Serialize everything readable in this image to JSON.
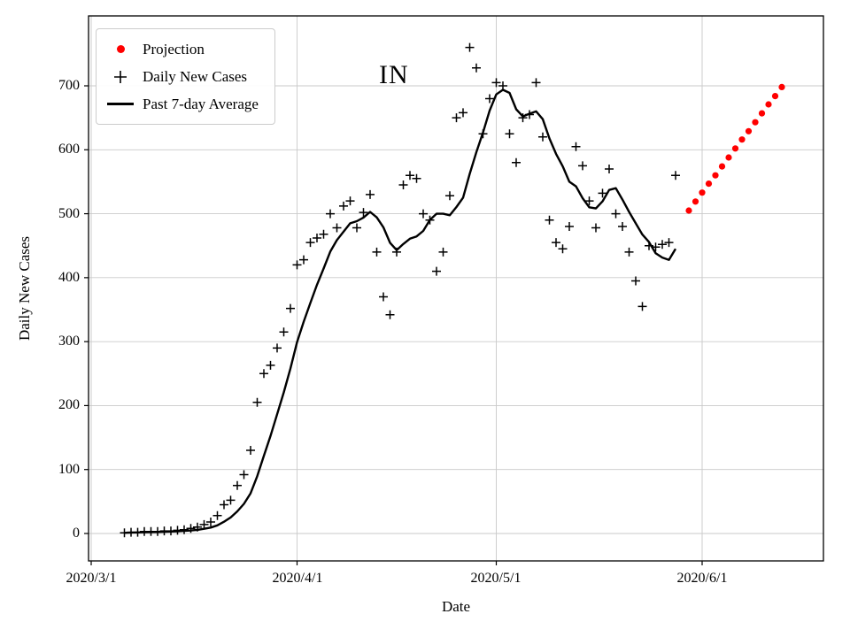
{
  "title": "IN",
  "legend": {
    "items": [
      {
        "label": "Projection",
        "marker": "dot",
        "color": "#ff0000"
      },
      {
        "label": "Daily New Cases",
        "marker": "plus",
        "color": "#000000"
      },
      {
        "label": "Past 7-day Average",
        "marker": "line",
        "color": "#000000"
      }
    ]
  },
  "chart_data": {
    "type": "scatter",
    "title": "IN",
    "xlabel": "Date",
    "ylabel": "Daily New Cases",
    "grid": true,
    "legend_position": "upper left",
    "x_tick_labels": [
      "2020/3/1",
      "2020/4/1",
      "2020/5/1",
      "2020/6/1"
    ],
    "y_tick_labels": [
      "0",
      "100",
      "200",
      "300",
      "400",
      "500",
      "600",
      "700"
    ],
    "ylim": [
      -43,
      809
    ],
    "xlim": [
      "2020/2/29",
      "2020/6/19"
    ],
    "series": [
      {
        "name": "Daily New Cases",
        "type": "scatter",
        "marker": "plus",
        "color": "#000000",
        "dates": [
          "2020/3/6",
          "2020/3/7",
          "2020/3/8",
          "2020/3/9",
          "2020/3/10",
          "2020/3/11",
          "2020/3/12",
          "2020/3/13",
          "2020/3/14",
          "2020/3/15",
          "2020/3/16",
          "2020/3/17",
          "2020/3/18",
          "2020/3/19",
          "2020/3/20",
          "2020/3/21",
          "2020/3/22",
          "2020/3/23",
          "2020/3/24",
          "2020/3/25",
          "2020/3/26",
          "2020/3/27",
          "2020/3/28",
          "2020/3/29",
          "2020/3/30",
          "2020/3/31",
          "2020/4/1",
          "2020/4/2",
          "2020/4/3",
          "2020/4/4",
          "2020/4/5",
          "2020/4/6",
          "2020/4/7",
          "2020/4/8",
          "2020/4/9",
          "2020/4/10",
          "2020/4/11",
          "2020/4/12",
          "2020/4/13",
          "2020/4/14",
          "2020/4/15",
          "2020/4/16",
          "2020/4/17",
          "2020/4/18",
          "2020/4/19",
          "2020/4/20",
          "2020/4/21",
          "2020/4/22",
          "2020/4/23",
          "2020/4/24",
          "2020/4/25",
          "2020/4/26",
          "2020/4/27",
          "2020/4/28",
          "2020/4/29",
          "2020/4/30",
          "2020/5/1",
          "2020/5/2",
          "2020/5/3",
          "2020/5/4",
          "2020/5/5",
          "2020/5/6",
          "2020/5/7",
          "2020/5/8",
          "2020/5/9",
          "2020/5/10",
          "2020/5/11",
          "2020/5/12",
          "2020/5/13",
          "2020/5/14",
          "2020/5/15",
          "2020/5/16",
          "2020/5/17",
          "2020/5/18",
          "2020/5/19",
          "2020/5/20",
          "2020/5/21",
          "2020/5/22",
          "2020/5/23",
          "2020/5/24",
          "2020/5/25",
          "2020/5/26",
          "2020/5/27",
          "2020/5/28"
        ],
        "values": [
          1,
          2,
          2,
          3,
          3,
          3,
          4,
          4,
          5,
          6,
          8,
          10,
          14,
          18,
          28,
          45,
          52,
          75,
          92,
          130,
          205,
          250,
          263,
          290,
          315,
          352,
          420,
          428,
          455,
          462,
          468,
          500,
          478,
          512,
          520,
          478,
          502,
          530,
          440,
          370,
          342,
          440,
          545,
          560,
          555,
          500,
          490,
          410,
          440,
          528,
          650,
          658,
          760,
          728,
          625,
          680,
          705,
          700,
          625,
          580,
          650,
          655,
          705,
          620,
          490,
          455,
          445,
          480,
          605,
          575,
          520,
          478,
          532,
          570,
          500,
          480,
          440,
          395,
          355,
          450,
          448,
          452,
          455,
          560
        ]
      },
      {
        "name": "Past 7-day Average",
        "type": "line",
        "color": "#000000",
        "derived": "trailing 7-day mean of Daily New Cases"
      },
      {
        "name": "Projection",
        "type": "scatter",
        "marker": "dot",
        "color": "#ff0000",
        "dates": [
          "2020/5/30",
          "2020/5/31",
          "2020/6/1",
          "2020/6/2",
          "2020/6/3",
          "2020/6/4",
          "2020/6/5",
          "2020/6/6",
          "2020/6/7",
          "2020/6/8",
          "2020/6/9",
          "2020/6/10",
          "2020/6/11",
          "2020/6/12",
          "2020/6/13"
        ],
        "values": [
          505,
          519,
          533,
          547,
          560,
          574,
          588,
          602,
          616,
          629,
          643,
          657,
          671,
          684,
          698
        ]
      }
    ]
  }
}
